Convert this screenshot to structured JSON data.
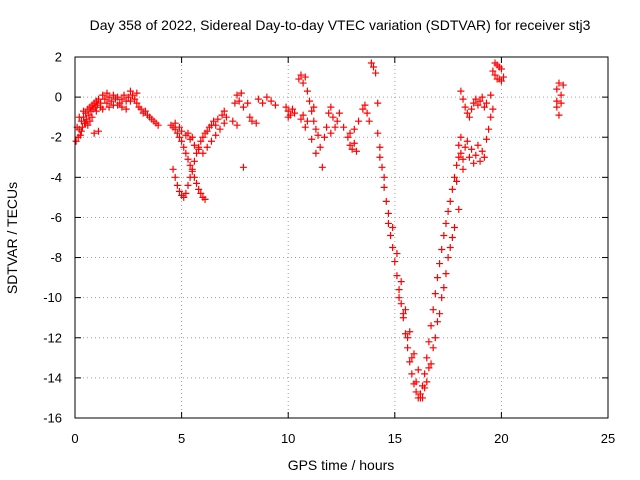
{
  "chart_data": {
    "type": "scatter",
    "title": "Day 358 of 2022, Sidereal Day-to-day VTEC variation (SDTVAR) for receiver stj3",
    "xlabel": "GPS time / hours",
    "ylabel": "SDTVAR / TECUs",
    "xlim": [
      0,
      25
    ],
    "ylim": [
      -16,
      2
    ],
    "xticks": [
      0,
      5,
      10,
      15,
      20,
      25
    ],
    "yticks": [
      -16,
      -14,
      -12,
      -10,
      -8,
      -6,
      -4,
      -2,
      0,
      2
    ],
    "xtick_labels": [
      "0",
      "5",
      "10",
      "15",
      "20",
      "25"
    ],
    "ytick_labels": [
      "-16",
      "-14",
      "-12",
      "-10",
      "-8",
      "-6",
      "-4",
      "-2",
      "0",
      "2"
    ],
    "grid": true,
    "marker": "+",
    "color": "#ff0000",
    "series": [
      {
        "name": "SDTVAR",
        "points": [
          [
            0.05,
            -2.2
          ],
          [
            0.1,
            -1.5
          ],
          [
            0.15,
            -2.0
          ],
          [
            0.2,
            -1.6
          ],
          [
            0.25,
            -1.9
          ],
          [
            0.3,
            -1.2
          ],
          [
            0.35,
            -1.5
          ],
          [
            0.4,
            -1.0
          ],
          [
            0.45,
            -1.3
          ],
          [
            0.5,
            -0.8
          ],
          [
            0.55,
            -1.1
          ],
          [
            0.6,
            -0.6
          ],
          [
            0.65,
            -0.9
          ],
          [
            0.7,
            -0.5
          ],
          [
            0.75,
            -0.7
          ],
          [
            0.8,
            -0.4
          ],
          [
            0.85,
            -0.6
          ],
          [
            0.9,
            -0.3
          ],
          [
            0.95,
            -0.5
          ],
          [
            1.0,
            -0.2
          ],
          [
            1.05,
            -0.4
          ],
          [
            1.1,
            -0.1
          ],
          [
            1.2,
            -0.3
          ],
          [
            1.3,
            0.1
          ],
          [
            1.4,
            -0.1
          ],
          [
            1.5,
            0.2
          ],
          [
            1.6,
            0.0
          ],
          [
            1.7,
            -0.2
          ],
          [
            1.8,
            0.1
          ],
          [
            1.9,
            -0.1
          ],
          [
            2.0,
            0.0
          ],
          [
            2.1,
            -0.3
          ],
          [
            2.2,
            -0.1
          ],
          [
            2.3,
            0.1
          ],
          [
            2.4,
            -0.2
          ],
          [
            2.5,
            0.0
          ],
          [
            2.6,
            0.3
          ],
          [
            2.7,
            0.1
          ],
          [
            2.8,
            -0.1
          ],
          [
            2.9,
            -0.3
          ],
          [
            3.0,
            -0.5
          ],
          [
            3.1,
            -0.6
          ],
          [
            3.2,
            -0.8
          ],
          [
            3.3,
            -0.7
          ],
          [
            3.4,
            -0.9
          ],
          [
            3.5,
            -1.0
          ],
          [
            3.6,
            -1.1
          ],
          [
            3.7,
            -1.2
          ],
          [
            3.8,
            -1.3
          ],
          [
            3.9,
            -1.4
          ],
          [
            0.2,
            -1.0
          ],
          [
            0.4,
            -0.7
          ],
          [
            0.6,
            -1.4
          ],
          [
            0.8,
            -1.0
          ],
          [
            1.0,
            -0.7
          ],
          [
            1.2,
            -0.5
          ],
          [
            1.5,
            -0.3
          ],
          [
            1.8,
            -0.4
          ],
          [
            2.2,
            -0.5
          ],
          [
            2.6,
            -0.2
          ],
          [
            2.9,
            0.2
          ],
          [
            1.1,
            -1.7
          ],
          [
            0.9,
            -1.8
          ],
          [
            0.3,
            -1.7
          ],
          [
            0.5,
            -1.3
          ],
          [
            0.7,
            -1.2
          ],
          [
            1.3,
            -0.6
          ],
          [
            1.6,
            -0.5
          ],
          [
            2.0,
            -0.4
          ],
          [
            2.4,
            -0.6
          ],
          [
            4.5,
            -1.4
          ],
          [
            4.6,
            -1.5
          ],
          [
            4.7,
            -1.6
          ],
          [
            4.8,
            -1.8
          ],
          [
            4.9,
            -2.0
          ],
          [
            5.0,
            -2.2
          ],
          [
            5.1,
            -2.5
          ],
          [
            5.2,
            -2.8
          ],
          [
            5.3,
            -3.1
          ],
          [
            5.4,
            -3.4
          ],
          [
            5.5,
            -3.7
          ],
          [
            5.6,
            -4.0
          ],
          [
            5.7,
            -4.3
          ],
          [
            5.8,
            -4.6
          ],
          [
            5.9,
            -4.8
          ],
          [
            6.0,
            -5.0
          ],
          [
            6.1,
            -5.1
          ],
          [
            4.6,
            -3.6
          ],
          [
            4.7,
            -4.0
          ],
          [
            4.8,
            -4.4
          ],
          [
            4.9,
            -4.7
          ],
          [
            5.0,
            -4.9
          ],
          [
            5.1,
            -5.0
          ],
          [
            5.2,
            -4.8
          ],
          [
            5.3,
            -4.4
          ],
          [
            5.4,
            -4.0
          ],
          [
            5.5,
            -3.6
          ],
          [
            5.6,
            -3.2
          ],
          [
            5.7,
            -2.8
          ],
          [
            5.8,
            -2.5
          ],
          [
            5.9,
            -2.2
          ],
          [
            6.0,
            -2.0
          ],
          [
            6.1,
            -1.8
          ],
          [
            6.2,
            -1.7
          ],
          [
            6.3,
            -1.5
          ],
          [
            6.4,
            -1.4
          ],
          [
            6.5,
            -1.2
          ],
          [
            5.0,
            -1.7
          ],
          [
            5.2,
            -1.9
          ],
          [
            5.4,
            -2.1
          ],
          [
            5.6,
            -2.4
          ],
          [
            5.8,
            -2.6
          ],
          [
            6.0,
            -2.8
          ],
          [
            6.2,
            -2.5
          ],
          [
            6.4,
            -2.2
          ],
          [
            6.6,
            -1.9
          ],
          [
            6.8,
            -1.6
          ],
          [
            7.0,
            -1.3
          ],
          [
            7.1,
            -1.0
          ],
          [
            6.7,
            -1.1
          ],
          [
            6.9,
            -0.9
          ],
          [
            6.6,
            -1.4
          ],
          [
            7.0,
            -0.7
          ],
          [
            4.7,
            -1.3
          ],
          [
            4.9,
            -1.5
          ],
          [
            5.3,
            -1.8
          ],
          [
            5.5,
            -2.0
          ],
          [
            7.5,
            -0.3
          ],
          [
            7.6,
            0.1
          ],
          [
            7.7,
            -0.2
          ],
          [
            7.8,
            0.2
          ],
          [
            7.9,
            -0.5
          ],
          [
            8.1,
            -0.3
          ],
          [
            8.2,
            -1.0
          ],
          [
            7.4,
            -1.2
          ],
          [
            7.6,
            -1.4
          ],
          [
            7.9,
            -3.5
          ],
          [
            8.6,
            -0.1
          ],
          [
            8.8,
            -0.3
          ],
          [
            9.0,
            0.0
          ],
          [
            9.2,
            -0.2
          ],
          [
            9.4,
            -0.4
          ],
          [
            8.5,
            -1.3
          ],
          [
            8.3,
            -1.2
          ],
          [
            9.9,
            -0.5
          ],
          [
            10.0,
            -0.7
          ],
          [
            10.1,
            -0.9
          ],
          [
            10.2,
            -0.6
          ],
          [
            10.3,
            -0.8
          ],
          [
            10.0,
            -1.0
          ],
          [
            10.5,
            0.9
          ],
          [
            10.6,
            1.1
          ],
          [
            10.7,
            0.7
          ],
          [
            10.8,
            1.0
          ],
          [
            10.9,
            0.3
          ],
          [
            11.0,
            -0.2
          ],
          [
            11.1,
            -0.7
          ],
          [
            11.2,
            -1.2
          ],
          [
            11.3,
            -1.6
          ],
          [
            11.4,
            -1.9
          ],
          [
            10.6,
            -1.1
          ],
          [
            10.7,
            -0.9
          ],
          [
            10.8,
            -1.5
          ],
          [
            10.9,
            -1.2
          ],
          [
            11.1,
            -2.1
          ],
          [
            11.3,
            -2.8
          ],
          [
            11.6,
            -3.5
          ],
          [
            11.5,
            -2.5
          ],
          [
            11.7,
            -2.0
          ],
          [
            11.8,
            -1.5
          ],
          [
            11.9,
            -0.8
          ],
          [
            12.0,
            -0.5
          ],
          [
            12.1,
            -1.0
          ],
          [
            12.2,
            -1.5
          ],
          [
            12.3,
            -1.2
          ],
          [
            12.0,
            -1.8
          ],
          [
            11.2,
            -0.5
          ],
          [
            12.4,
            -0.8
          ],
          [
            12.6,
            -1.5
          ],
          [
            12.8,
            -2.0
          ],
          [
            12.9,
            -2.4
          ],
          [
            13.0,
            -2.6
          ],
          [
            13.1,
            -2.3
          ],
          [
            13.2,
            -2.7
          ],
          [
            13.3,
            -1.2
          ],
          [
            13.1,
            -1.6
          ],
          [
            12.9,
            -1.8
          ],
          [
            13.5,
            -0.6
          ],
          [
            13.6,
            -0.4
          ],
          [
            13.7,
            -0.8
          ],
          [
            13.8,
            -1.2
          ],
          [
            13.9,
            1.7
          ],
          [
            14.0,
            1.5
          ],
          [
            14.1,
            1.2
          ],
          [
            14.2,
            -0.3
          ],
          [
            14.2,
            -1.8
          ],
          [
            14.3,
            -2.5
          ],
          [
            14.3,
            -3.0
          ],
          [
            14.4,
            -3.5
          ],
          [
            14.5,
            -4.0
          ],
          [
            14.5,
            -4.5
          ],
          [
            14.6,
            -5.2
          ],
          [
            14.7,
            -5.8
          ],
          [
            14.7,
            -6.3
          ],
          [
            14.8,
            -6.9
          ],
          [
            14.9,
            -7.5
          ],
          [
            15.0,
            -8.2
          ],
          [
            15.1,
            -8.9
          ],
          [
            15.2,
            -9.6
          ],
          [
            15.3,
            -10.3
          ],
          [
            15.4,
            -11.0
          ],
          [
            15.5,
            -11.8
          ],
          [
            15.6,
            -12.5
          ],
          [
            15.7,
            -13.2
          ],
          [
            15.8,
            -13.8
          ],
          [
            15.9,
            -14.3
          ],
          [
            16.0,
            -14.7
          ],
          [
            16.1,
            -15.0
          ],
          [
            16.2,
            -14.8
          ],
          [
            16.3,
            -14.4
          ],
          [
            16.4,
            -13.8
          ],
          [
            16.5,
            -13.0
          ],
          [
            16.6,
            -12.2
          ],
          [
            16.7,
            -11.4
          ],
          [
            16.8,
            -10.6
          ],
          [
            16.9,
            -9.8
          ],
          [
            17.0,
            -9.0
          ],
          [
            17.1,
            -8.3
          ],
          [
            17.2,
            -7.6
          ],
          [
            17.3,
            -6.9
          ],
          [
            17.4,
            -6.3
          ],
          [
            17.5,
            -5.7
          ],
          [
            17.6,
            -5.2
          ],
          [
            17.7,
            -4.6
          ],
          [
            17.8,
            -4.0
          ],
          [
            17.9,
            -3.4
          ],
          [
            18.0,
            -3.0
          ],
          [
            15.2,
            -10.0
          ],
          [
            15.4,
            -10.8
          ],
          [
            15.6,
            -12.0
          ],
          [
            15.8,
            -13.0
          ],
          [
            16.0,
            -14.2
          ],
          [
            16.2,
            -15.0
          ],
          [
            16.4,
            -14.5
          ],
          [
            16.6,
            -13.5
          ],
          [
            16.8,
            -12.5
          ],
          [
            17.0,
            -11.2
          ],
          [
            17.2,
            -10.0
          ],
          [
            17.4,
            -8.8
          ],
          [
            17.6,
            -7.5
          ],
          [
            17.8,
            -6.5
          ],
          [
            18.0,
            -5.6
          ],
          [
            14.9,
            -6.5
          ],
          [
            15.1,
            -7.8
          ],
          [
            15.3,
            -9.2
          ],
          [
            15.5,
            -10.6
          ],
          [
            15.7,
            -11.7
          ],
          [
            15.9,
            -12.8
          ],
          [
            16.1,
            -13.6
          ],
          [
            16.3,
            -15.0
          ],
          [
            16.5,
            -14.2
          ],
          [
            16.7,
            -13.3
          ],
          [
            16.9,
            -12.0
          ],
          [
            17.1,
            -10.8
          ],
          [
            17.3,
            -9.5
          ],
          [
            17.5,
            -8.0
          ],
          [
            17.7,
            -7.0
          ],
          [
            18.0,
            -2.4
          ],
          [
            18.1,
            -2.8
          ],
          [
            18.2,
            -3.1
          ],
          [
            18.3,
            -2.5
          ],
          [
            18.4,
            -2.2
          ],
          [
            18.5,
            -3.0
          ],
          [
            18.6,
            -2.6
          ],
          [
            18.7,
            -3.3
          ],
          [
            18.8,
            -2.9
          ],
          [
            18.9,
            -2.4
          ],
          [
            19.0,
            -3.2
          ],
          [
            19.1,
            -2.7
          ],
          [
            19.2,
            -3.0
          ],
          [
            19.3,
            -2.1
          ],
          [
            19.4,
            -1.6
          ],
          [
            19.5,
            -1.0
          ],
          [
            19.6,
            -0.6
          ],
          [
            18.2,
            -0.1
          ],
          [
            18.3,
            -0.5
          ],
          [
            18.1,
            0.3
          ],
          [
            18.4,
            -0.8
          ],
          [
            18.5,
            -1.0
          ],
          [
            18.6,
            -0.6
          ],
          [
            18.7,
            -0.3
          ],
          [
            18.8,
            -0.1
          ],
          [
            18.9,
            -0.4
          ],
          [
            19.0,
            -0.2
          ],
          [
            19.1,
            0.0
          ],
          [
            19.2,
            -0.5
          ],
          [
            19.3,
            -0.3
          ],
          [
            19.5,
            0.1
          ],
          [
            18.1,
            -2.0
          ],
          [
            18.2,
            -3.6
          ],
          [
            17.9,
            -4.2
          ],
          [
            19.6,
            1.3
          ],
          [
            19.7,
            1.1
          ],
          [
            19.8,
            1.6
          ],
          [
            19.9,
            0.9
          ],
          [
            20.0,
            1.4
          ],
          [
            20.1,
            1.0
          ],
          [
            19.7,
            1.7
          ],
          [
            19.9,
            1.5
          ],
          [
            20.0,
            0.8
          ],
          [
            19.8,
            0.9
          ],
          [
            22.6,
            0.4
          ],
          [
            22.7,
            0.7
          ],
          [
            22.8,
            0.1
          ],
          [
            22.6,
            -0.5
          ],
          [
            22.7,
            -0.9
          ],
          [
            22.8,
            -0.3
          ],
          [
            22.9,
            0.6
          ],
          [
            22.6,
            -0.2
          ]
        ]
      }
    ]
  }
}
